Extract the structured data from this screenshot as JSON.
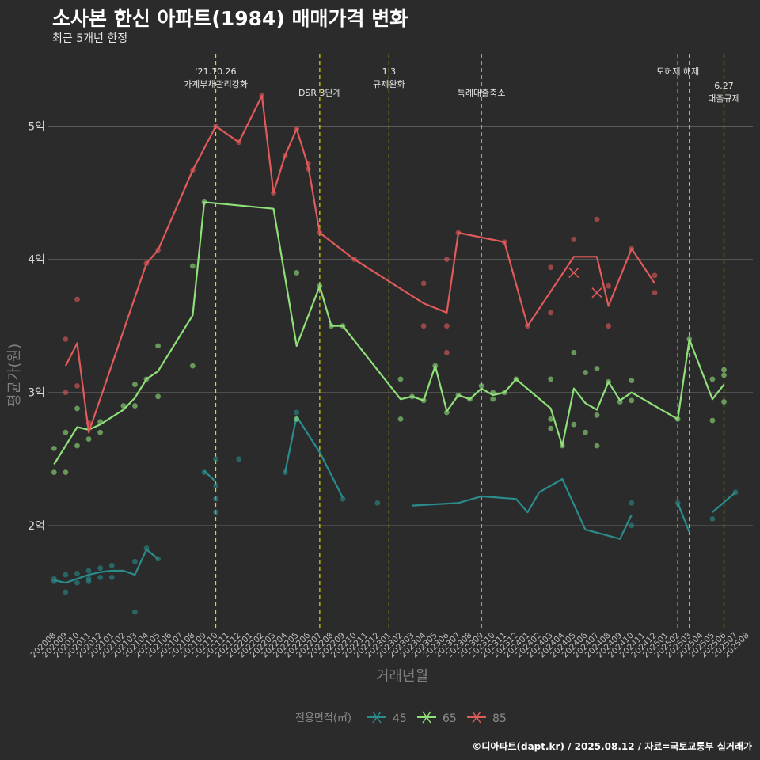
{
  "chart_data": {
    "type": "line",
    "title": "소사본 한신 아파트(1984) 매매가격 변화",
    "subtitle": "최근 5개년 한정",
    "xlabel": "거래년월",
    "ylabel": "평균가(원)",
    "caption": "©디아파트(dapt.kr) / 2025.08.12 / 자료=국토교통부 실거래가",
    "legend": {
      "title": "전용면적(㎡)",
      "position": "bottom"
    },
    "ylim": [
      1.22,
      5.58
    ],
    "yticks": [
      {
        "value": 2,
        "label": "2억"
      },
      {
        "value": 3,
        "label": "3억"
      },
      {
        "value": 4,
        "label": "4억"
      },
      {
        "value": 5,
        "label": "5억"
      }
    ],
    "grid": true,
    "x_categories": [
      "202008",
      "202009",
      "202010",
      "202011",
      "202012",
      "202101",
      "202102",
      "202103",
      "202104",
      "202105",
      "202106",
      "202107",
      "202108",
      "202109",
      "202110",
      "202111",
      "202112",
      "202201",
      "202202",
      "202203",
      "202204",
      "202205",
      "202206",
      "202207",
      "202208",
      "202209",
      "202210",
      "202211",
      "202212",
      "202301",
      "202302",
      "202303",
      "202304",
      "202305",
      "202306",
      "202307",
      "202308",
      "202309",
      "202310",
      "202311",
      "202312",
      "202401",
      "202402",
      "202403",
      "202404",
      "202405",
      "202406",
      "202407",
      "202408",
      "202409",
      "202410",
      "202411",
      "202412",
      "202501",
      "202502",
      "202503",
      "202504",
      "202505",
      "202506",
      "202507",
      "202508"
    ],
    "events": [
      {
        "month": "202110",
        "lines": [
          "'21.10.26",
          "가계부채관리강화"
        ],
        "level": 1
      },
      {
        "month": "202207",
        "lines": [
          "DSR 3단계"
        ],
        "level": 2
      },
      {
        "month": "202301",
        "lines": [
          "1.3",
          "규제완화"
        ],
        "level": 1
      },
      {
        "month": "202309",
        "lines": [
          "특례대출축소"
        ],
        "level": 2
      },
      {
        "month": "202502",
        "lines": [
          "토허제 해제"
        ],
        "level": 1
      },
      {
        "month": "202503",
        "lines": [],
        "level": 1
      },
      {
        "month": "202506",
        "lines": [
          "6.27",
          "대출규제"
        ],
        "level": 3
      }
    ],
    "series": [
      {
        "name": "45",
        "color": "#2a8c8c",
        "line": [
          [
            0,
            1.59
          ],
          [
            1,
            1.57
          ],
          [
            2,
            1.6
          ],
          [
            3,
            1.63
          ],
          [
            4,
            1.65
          ],
          [
            5,
            1.66
          ],
          [
            6,
            1.66
          ],
          [
            7,
            1.63
          ],
          [
            8,
            1.82
          ],
          [
            9,
            1.75
          ],
          null,
          [
            13,
            2.41
          ],
          [
            14,
            2.33
          ],
          null,
          [
            20,
            2.4
          ],
          [
            21,
            2.82
          ],
          [
            23,
            2.55
          ],
          [
            25,
            2.21
          ],
          null,
          [
            31,
            2.15
          ],
          [
            35,
            2.17
          ],
          [
            37,
            2.22
          ],
          [
            40,
            2.2
          ],
          [
            41,
            2.1
          ],
          [
            42,
            2.25
          ],
          [
            44,
            2.35
          ],
          [
            46,
            1.97
          ],
          [
            49,
            1.9
          ],
          [
            50,
            2.08
          ],
          null,
          [
            54,
            2.17
          ],
          [
            55,
            1.95
          ],
          null,
          [
            57,
            2.1
          ],
          [
            59,
            2.25
          ]
        ],
        "points": [
          [
            0,
            1.6
          ],
          [
            0,
            1.58
          ],
          [
            1,
            1.5
          ],
          [
            1,
            1.63
          ],
          [
            2,
            1.64
          ],
          [
            2,
            1.57
          ],
          [
            3,
            1.66
          ],
          [
            3,
            1.6
          ],
          [
            3,
            1.58
          ],
          [
            4,
            1.68
          ],
          [
            4,
            1.61
          ],
          [
            5,
            1.7
          ],
          [
            5,
            1.61
          ],
          [
            7,
            1.73
          ],
          [
            7,
            1.35
          ],
          [
            8,
            1.83
          ],
          [
            9,
            1.75
          ],
          [
            13,
            2.4
          ],
          [
            14,
            2.5
          ],
          [
            14,
            2.3
          ],
          [
            14,
            2.2
          ],
          [
            14,
            2.1
          ],
          [
            16,
            2.5
          ],
          [
            20,
            2.4
          ],
          [
            21,
            2.85
          ],
          [
            21,
            2.8
          ],
          [
            25,
            2.2
          ],
          [
            28,
            2.17
          ],
          [
            50,
            2.17
          ],
          [
            50,
            2.0
          ],
          [
            54,
            2.17
          ],
          [
            57,
            2.05
          ],
          [
            59,
            2.25
          ]
        ]
      },
      {
        "name": "65",
        "color": "#90e07a",
        "line": [
          [
            0,
            2.46
          ],
          [
            1,
            2.6
          ],
          [
            2,
            2.74
          ],
          [
            3,
            2.72
          ],
          [
            4,
            2.76
          ],
          [
            6,
            2.87
          ],
          [
            7,
            2.96
          ],
          [
            8,
            3.1
          ],
          [
            9,
            3.16
          ],
          [
            12,
            3.58
          ],
          [
            13,
            4.43
          ],
          [
            19,
            4.38
          ],
          [
            21,
            3.35
          ],
          [
            23,
            3.8
          ],
          [
            24,
            3.5
          ],
          [
            25,
            3.5
          ],
          [
            30,
            2.95
          ],
          [
            31,
            2.97
          ],
          [
            32,
            2.94
          ],
          [
            33,
            3.2
          ],
          [
            34,
            2.86
          ],
          [
            35,
            2.98
          ],
          [
            36,
            2.95
          ],
          [
            37,
            3.03
          ],
          [
            38,
            2.98
          ],
          [
            39,
            3.0
          ],
          [
            40,
            3.1
          ],
          [
            43,
            2.88
          ],
          [
            44,
            2.6
          ],
          [
            45,
            3.03
          ],
          [
            46,
            2.92
          ],
          [
            47,
            2.87
          ],
          [
            48,
            3.08
          ],
          [
            49,
            2.94
          ],
          [
            50,
            3.0
          ],
          [
            54,
            2.8
          ],
          [
            55,
            3.4
          ],
          [
            57,
            2.95
          ],
          [
            58,
            3.06
          ]
        ],
        "points": [
          [
            0,
            2.4
          ],
          [
            0,
            2.58
          ],
          [
            1,
            2.7
          ],
          [
            1,
            2.4
          ],
          [
            2,
            2.88
          ],
          [
            2,
            2.6
          ],
          [
            3,
            2.65
          ],
          [
            4,
            2.78
          ],
          [
            4,
            2.7
          ],
          [
            6,
            2.9
          ],
          [
            7,
            2.9
          ],
          [
            7,
            3.06
          ],
          [
            8,
            3.1
          ],
          [
            9,
            3.35
          ],
          [
            9,
            2.97
          ],
          [
            12,
            3.95
          ],
          [
            12,
            3.2
          ],
          [
            13,
            4.43
          ],
          [
            21,
            3.9
          ],
          [
            21,
            2.8
          ],
          [
            23,
            3.8
          ],
          [
            24,
            3.5
          ],
          [
            25,
            3.5
          ],
          [
            30,
            3.1
          ],
          [
            30,
            2.8
          ],
          [
            31,
            2.97
          ],
          [
            32,
            2.94
          ],
          [
            33,
            3.2
          ],
          [
            34,
            2.85
          ],
          [
            35,
            2.98
          ],
          [
            36,
            2.95
          ],
          [
            37,
            3.05
          ],
          [
            38,
            3.0
          ],
          [
            38,
            2.95
          ],
          [
            39,
            3.0
          ],
          [
            40,
            3.1
          ],
          [
            43,
            3.1
          ],
          [
            43,
            2.8
          ],
          [
            43,
            2.73
          ],
          [
            44,
            2.6
          ],
          [
            45,
            3.3
          ],
          [
            45,
            2.76
          ],
          [
            46,
            3.15
          ],
          [
            46,
            2.7
          ],
          [
            47,
            3.18
          ],
          [
            47,
            2.83
          ],
          [
            47,
            2.6
          ],
          [
            48,
            3.08
          ],
          [
            49,
            2.93
          ],
          [
            50,
            3.09
          ],
          [
            50,
            2.94
          ],
          [
            54,
            2.8
          ],
          [
            55,
            3.4
          ],
          [
            57,
            3.1
          ],
          [
            57,
            2.79
          ],
          [
            58,
            3.17
          ],
          [
            58,
            3.13
          ],
          [
            58,
            2.93
          ]
        ]
      },
      {
        "name": "85",
        "color": "#e05a5a",
        "line": [
          [
            1,
            3.2
          ],
          [
            2,
            3.37
          ],
          [
            3,
            2.7
          ],
          [
            8,
            3.97
          ],
          [
            9,
            4.07
          ],
          [
            12,
            4.67
          ],
          [
            14,
            5.0
          ],
          [
            16,
            4.88
          ],
          [
            18,
            5.23
          ],
          [
            19,
            4.5
          ],
          [
            20,
            4.78
          ],
          [
            21,
            4.98
          ],
          [
            22,
            4.7
          ],
          [
            23,
            4.2
          ],
          [
            26,
            4.0
          ],
          [
            32,
            3.67
          ],
          [
            34,
            3.6
          ],
          [
            35,
            4.2
          ],
          [
            39,
            4.13
          ],
          [
            41,
            3.5
          ],
          [
            45,
            4.02
          ],
          [
            47,
            4.02
          ],
          [
            48,
            3.65
          ],
          [
            50,
            4.08
          ],
          [
            52,
            3.82
          ]
        ],
        "points": [
          [
            1,
            3.4
          ],
          [
            1,
            3.0
          ],
          [
            2,
            3.7
          ],
          [
            2,
            3.05
          ],
          [
            3,
            2.77
          ],
          [
            8,
            3.97
          ],
          [
            9,
            4.07
          ],
          [
            12,
            4.67
          ],
          [
            14,
            5.0
          ],
          [
            16,
            4.88
          ],
          [
            18,
            5.23
          ],
          [
            19,
            4.5
          ],
          [
            20,
            4.78
          ],
          [
            21,
            4.98
          ],
          [
            22,
            4.72
          ],
          [
            22,
            4.68
          ],
          [
            23,
            4.2
          ],
          [
            26,
            4.0
          ],
          [
            32,
            3.82
          ],
          [
            32,
            3.5
          ],
          [
            34,
            4.0
          ],
          [
            34,
            3.5
          ],
          [
            34,
            3.3
          ],
          [
            35,
            4.2
          ],
          [
            39,
            4.13
          ],
          [
            41,
            3.5
          ],
          [
            43,
            3.94
          ],
          [
            43,
            3.6
          ],
          [
            45,
            4.15
          ],
          [
            47,
            4.3
          ],
          [
            48,
            3.8
          ],
          [
            48,
            3.5
          ],
          [
            50,
            4.08
          ],
          [
            52,
            3.88
          ],
          [
            52,
            3.75
          ]
        ],
        "crosses": [
          [
            45,
            3.9
          ],
          [
            47,
            3.75
          ]
        ]
      }
    ]
  }
}
